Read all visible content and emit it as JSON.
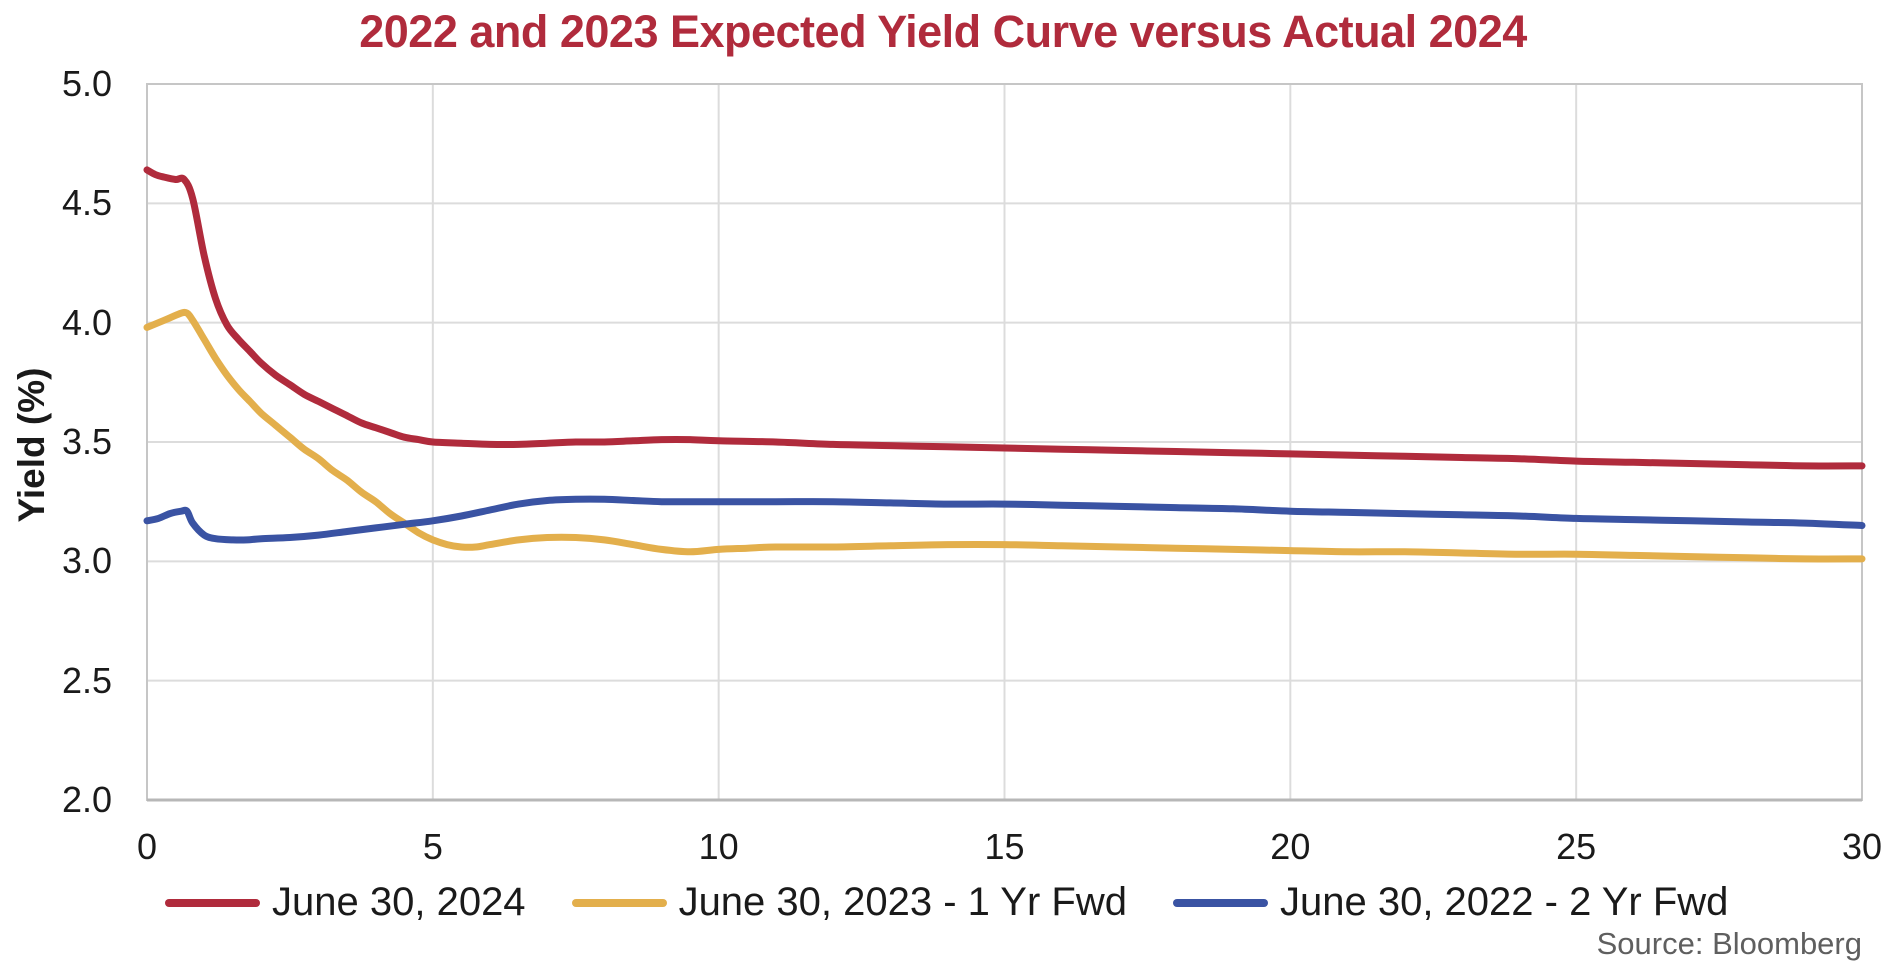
{
  "title": "2022 and 2023 Expected Yield Curve versus Actual 2024",
  "source": "Source: Bloomberg",
  "colors": {
    "title": "#B02B3C",
    "red_line": "#B02B3C",
    "gold_line": "#E3AF4C",
    "blue_line": "#3A53A3",
    "gridline": "#DCDCDC",
    "plot_border": "#C6C6C6",
    "axis_line": "#B7B7B7",
    "tick_text": "#1A1A1A",
    "source_text": "#5F5F5F"
  },
  "chart_data": {
    "type": "line",
    "title": "2022 and 2023 Expected Yield Curve versus Actual 2024",
    "xlabel": "",
    "ylabel": "Yield (%)",
    "xlim": [
      0,
      30
    ],
    "ylim": [
      2.0,
      5.0
    ],
    "xticks": [
      0,
      5,
      10,
      15,
      20,
      25,
      30
    ],
    "yticks": [
      5.0,
      4.5,
      4.0,
      3.5,
      3.0,
      2.5,
      2.0
    ],
    "grid": true,
    "legend_position": "bottom",
    "series": [
      {
        "name": "June 30, 2024",
        "color": "#B02B3C",
        "points": [
          [
            0,
            4.64
          ],
          [
            0.15,
            4.62
          ],
          [
            0.3,
            4.61
          ],
          [
            0.5,
            4.6
          ],
          [
            0.65,
            4.6
          ],
          [
            0.8,
            4.52
          ],
          [
            1,
            4.28
          ],
          [
            1.2,
            4.1
          ],
          [
            1.4,
            3.99
          ],
          [
            1.6,
            3.93
          ],
          [
            1.8,
            3.88
          ],
          [
            2,
            3.83
          ],
          [
            2.25,
            3.78
          ],
          [
            2.5,
            3.74
          ],
          [
            2.75,
            3.7
          ],
          [
            3,
            3.67
          ],
          [
            3.25,
            3.64
          ],
          [
            3.5,
            3.61
          ],
          [
            3.75,
            3.58
          ],
          [
            4,
            3.56
          ],
          [
            4.25,
            3.54
          ],
          [
            4.5,
            3.52
          ],
          [
            4.75,
            3.51
          ],
          [
            5,
            3.5
          ],
          [
            5.5,
            3.495
          ],
          [
            6,
            3.49
          ],
          [
            6.5,
            3.49
          ],
          [
            7,
            3.495
          ],
          [
            7.5,
            3.5
          ],
          [
            8,
            3.5
          ],
          [
            8.5,
            3.505
          ],
          [
            9,
            3.51
          ],
          [
            9.5,
            3.51
          ],
          [
            10,
            3.505
          ],
          [
            11,
            3.5
          ],
          [
            12,
            3.49
          ],
          [
            13,
            3.485
          ],
          [
            14,
            3.48
          ],
          [
            15,
            3.475
          ],
          [
            16,
            3.47
          ],
          [
            17,
            3.465
          ],
          [
            18,
            3.46
          ],
          [
            19,
            3.455
          ],
          [
            20,
            3.45
          ],
          [
            21,
            3.445
          ],
          [
            22,
            3.44
          ],
          [
            23,
            3.435
          ],
          [
            24,
            3.43
          ],
          [
            25,
            3.42
          ],
          [
            26,
            3.415
          ],
          [
            27,
            3.41
          ],
          [
            28,
            3.405
          ],
          [
            29,
            3.4
          ],
          [
            30,
            3.4
          ]
        ]
      },
      {
        "name": "June 30, 2023 - 1 Yr Fwd",
        "color": "#E3AF4C",
        "points": [
          [
            0,
            3.98
          ],
          [
            0.2,
            4.0
          ],
          [
            0.4,
            4.02
          ],
          [
            0.6,
            4.04
          ],
          [
            0.7,
            4.04
          ],
          [
            0.8,
            4.01
          ],
          [
            1,
            3.93
          ],
          [
            1.2,
            3.85
          ],
          [
            1.4,
            3.78
          ],
          [
            1.6,
            3.72
          ],
          [
            1.8,
            3.67
          ],
          [
            2,
            3.62
          ],
          [
            2.25,
            3.57
          ],
          [
            2.5,
            3.52
          ],
          [
            2.75,
            3.47
          ],
          [
            3,
            3.43
          ],
          [
            3.25,
            3.38
          ],
          [
            3.5,
            3.34
          ],
          [
            3.75,
            3.29
          ],
          [
            4,
            3.25
          ],
          [
            4.25,
            3.2
          ],
          [
            4.5,
            3.16
          ],
          [
            4.75,
            3.12
          ],
          [
            5,
            3.09
          ],
          [
            5.25,
            3.07
          ],
          [
            5.5,
            3.06
          ],
          [
            5.75,
            3.06
          ],
          [
            6,
            3.07
          ],
          [
            6.5,
            3.09
          ],
          [
            7,
            3.1
          ],
          [
            7.5,
            3.1
          ],
          [
            8,
            3.09
          ],
          [
            8.5,
            3.07
          ],
          [
            9,
            3.05
          ],
          [
            9.5,
            3.04
          ],
          [
            10,
            3.05
          ],
          [
            10.5,
            3.055
          ],
          [
            11,
            3.06
          ],
          [
            12,
            3.06
          ],
          [
            13,
            3.065
          ],
          [
            14,
            3.07
          ],
          [
            15,
            3.07
          ],
          [
            16,
            3.065
          ],
          [
            17,
            3.06
          ],
          [
            18,
            3.055
          ],
          [
            19,
            3.05
          ],
          [
            20,
            3.045
          ],
          [
            21,
            3.04
          ],
          [
            22,
            3.04
          ],
          [
            23,
            3.035
          ],
          [
            24,
            3.03
          ],
          [
            25,
            3.03
          ],
          [
            26,
            3.025
          ],
          [
            27,
            3.02
          ],
          [
            28,
            3.015
          ],
          [
            29,
            3.01
          ],
          [
            30,
            3.01
          ]
        ]
      },
      {
        "name": "June 30, 2022 - 2 Yr Fwd",
        "color": "#3A53A3",
        "points": [
          [
            0,
            3.17
          ],
          [
            0.2,
            3.18
          ],
          [
            0.4,
            3.2
          ],
          [
            0.6,
            3.21
          ],
          [
            0.7,
            3.21
          ],
          [
            0.8,
            3.16
          ],
          [
            1,
            3.11
          ],
          [
            1.2,
            3.095
          ],
          [
            1.5,
            3.09
          ],
          [
            1.75,
            3.09
          ],
          [
            2,
            3.095
          ],
          [
            2.5,
            3.1
          ],
          [
            3,
            3.11
          ],
          [
            3.5,
            3.125
          ],
          [
            4,
            3.14
          ],
          [
            4.5,
            3.155
          ],
          [
            5,
            3.17
          ],
          [
            5.5,
            3.19
          ],
          [
            6,
            3.215
          ],
          [
            6.5,
            3.24
          ],
          [
            7,
            3.255
          ],
          [
            7.5,
            3.26
          ],
          [
            8,
            3.26
          ],
          [
            8.5,
            3.255
          ],
          [
            9,
            3.25
          ],
          [
            9.5,
            3.25
          ],
          [
            10,
            3.25
          ],
          [
            11,
            3.25
          ],
          [
            12,
            3.25
          ],
          [
            13,
            3.245
          ],
          [
            14,
            3.24
          ],
          [
            15,
            3.24
          ],
          [
            16,
            3.235
          ],
          [
            17,
            3.23
          ],
          [
            18,
            3.225
          ],
          [
            19,
            3.22
          ],
          [
            20,
            3.21
          ],
          [
            21,
            3.205
          ],
          [
            22,
            3.2
          ],
          [
            23,
            3.195
          ],
          [
            24,
            3.19
          ],
          [
            25,
            3.18
          ],
          [
            26,
            3.175
          ],
          [
            27,
            3.17
          ],
          [
            28,
            3.165
          ],
          [
            29,
            3.16
          ],
          [
            30,
            3.15
          ]
        ]
      }
    ]
  }
}
